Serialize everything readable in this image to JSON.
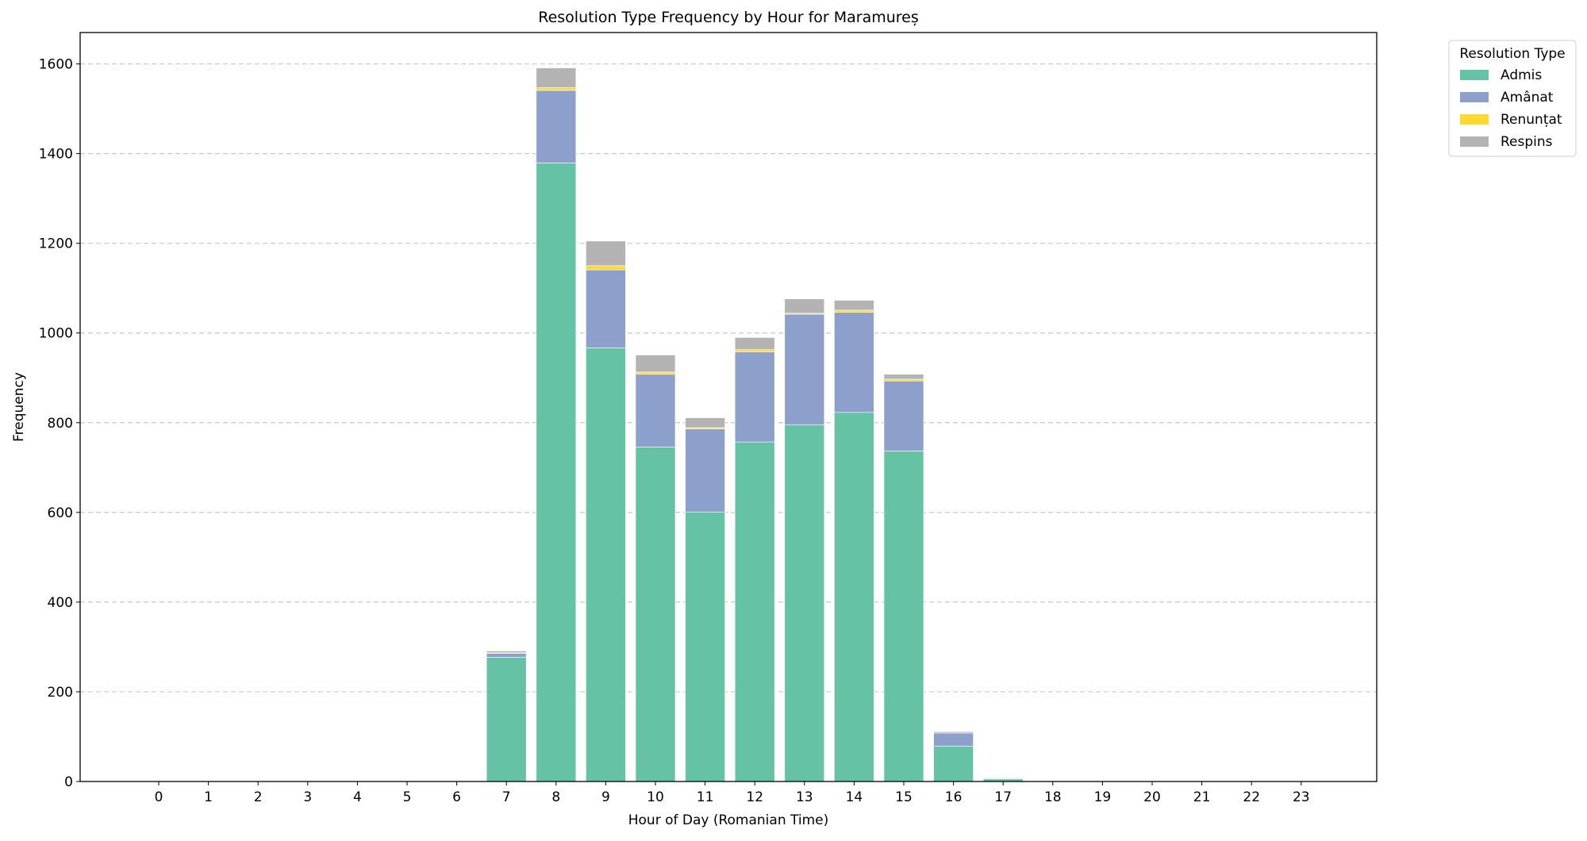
{
  "chart_data": {
    "type": "bar",
    "stacked": true,
    "title": "Resolution Type Frequency by Hour for Maramureș",
    "xlabel": "Hour of Day (Romanian Time)",
    "ylabel": "Frequency",
    "ylim": [
      0,
      1670
    ],
    "yticks": [
      0,
      200,
      400,
      600,
      800,
      1000,
      1200,
      1400,
      1600
    ],
    "grid": "y-dashed",
    "categories": [
      "0",
      "1",
      "2",
      "3",
      "4",
      "5",
      "6",
      "7",
      "8",
      "9",
      "10",
      "11",
      "12",
      "13",
      "14",
      "15",
      "16",
      "17",
      "18",
      "19",
      "20",
      "21",
      "22",
      "23"
    ],
    "legend": {
      "title": "Resolution Type",
      "placement": "outside-top-right"
    },
    "series": [
      {
        "name": "Admis",
        "color": "#66c2a5",
        "values": [
          0,
          0,
          0,
          0,
          0,
          0,
          0,
          277,
          1379,
          967,
          746,
          601,
          757,
          795,
          823,
          737,
          79,
          6,
          0,
          0,
          0,
          0,
          0,
          0
        ]
      },
      {
        "name": "Amânat",
        "color": "#8da0cb",
        "values": [
          0,
          0,
          0,
          0,
          0,
          0,
          0,
          9,
          162,
          174,
          162,
          185,
          201,
          247,
          223,
          156,
          29,
          1,
          0,
          0,
          0,
          0,
          0,
          0
        ]
      },
      {
        "name": "Renunțat",
        "color": "#ffd92f",
        "values": [
          0,
          0,
          0,
          0,
          0,
          0,
          0,
          1,
          6,
          9,
          5,
          3,
          5,
          2,
          5,
          4,
          0,
          0,
          0,
          0,
          0,
          0,
          0,
          0
        ]
      },
      {
        "name": "Respins",
        "color": "#b3b3b3",
        "values": [
          0,
          0,
          0,
          0,
          0,
          0,
          0,
          4,
          44,
          55,
          38,
          22,
          27,
          32,
          22,
          11,
          3,
          1,
          0,
          0,
          0,
          0,
          0,
          0
        ]
      }
    ]
  }
}
